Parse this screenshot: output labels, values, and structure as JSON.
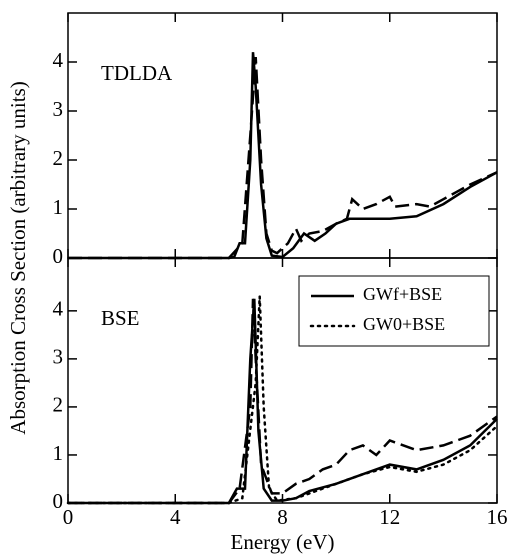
{
  "chart_data": [
    {
      "type": "line",
      "label": "TDLDA",
      "ylabel": "Absorption Cross Section (arbitrary units)",
      "xlim": [
        0,
        16
      ],
      "ylim": [
        0,
        5
      ],
      "xticks": [
        0,
        4,
        8,
        12,
        16
      ],
      "yticks": [
        0,
        1,
        2,
        3,
        4
      ],
      "xticklabels": false,
      "series": [
        {
          "color": "#000000",
          "dash": "solid",
          "x": [
            0,
            6,
            6.2,
            6.4,
            6.6,
            6.8,
            6.9,
            7.0,
            7.2,
            7.4,
            7.6,
            8.0,
            8.4,
            8.8,
            9.2,
            9.6,
            10,
            10.5,
            11,
            12,
            13,
            14,
            15,
            16
          ],
          "values": [
            0,
            0,
            0.02,
            0.3,
            0.3,
            2.0,
            4.2,
            3.5,
            1.5,
            0.4,
            0.05,
            0.02,
            0.2,
            0.5,
            0.35,
            0.5,
            0.7,
            0.8,
            0.8,
            0.8,
            0.85,
            1.1,
            1.45,
            1.75
          ]
        },
        {
          "color": "#000000",
          "dash": "dashed",
          "x": [
            0,
            6,
            6.5,
            6.8,
            7.0,
            7.2,
            7.4,
            7.6,
            7.8,
            8.2,
            8.5,
            8.7,
            9.0,
            9.5,
            10,
            10.4,
            10.6,
            11,
            11.5,
            12,
            12.2,
            13,
            13.5,
            14,
            14.5,
            15,
            16
          ],
          "values": [
            0,
            0,
            0.3,
            2.5,
            4.1,
            2.0,
            0.5,
            0.15,
            0.1,
            0.3,
            0.6,
            0.35,
            0.5,
            0.55,
            0.7,
            0.8,
            1.2,
            1.0,
            1.1,
            1.25,
            1.05,
            1.1,
            1.05,
            1.2,
            1.35,
            1.5,
            1.75
          ]
        }
      ]
    },
    {
      "type": "line",
      "label": "BSE",
      "xlabel": "Energy (eV)",
      "xlim": [
        0,
        16
      ],
      "ylim": [
        0,
        5.1
      ],
      "xticks": [
        0,
        4,
        8,
        12,
        16
      ],
      "yticks": [
        0,
        1,
        2,
        3,
        4
      ],
      "xticklabels": true,
      "legend": "upper right",
      "series": [
        {
          "name": "GWf+BSE",
          "color": "#000000",
          "dash": "solid",
          "x": [
            0,
            6,
            6.3,
            6.6,
            6.8,
            6.95,
            7.1,
            7.3,
            7.6,
            8,
            8.5,
            9,
            10,
            11,
            12,
            13,
            14,
            15,
            16
          ],
          "values": [
            0,
            0,
            0.3,
            0.3,
            3.0,
            4.25,
            1.5,
            0.3,
            0.05,
            0.05,
            0.1,
            0.25,
            0.4,
            0.6,
            0.8,
            0.7,
            0.9,
            1.2,
            1.75
          ]
        },
        {
          "name": "GW0+BSE",
          "color": "#000000",
          "dash": "dotted",
          "x": [
            0,
            6,
            6.5,
            7.0,
            7.15,
            7.3,
            7.5,
            7.8,
            8.5,
            9,
            10,
            11,
            12,
            13,
            14,
            15,
            16
          ],
          "values": [
            0,
            0,
            0.1,
            2.5,
            4.3,
            2.0,
            0.3,
            0.05,
            0.1,
            0.2,
            0.4,
            0.6,
            0.75,
            0.65,
            0.8,
            1.1,
            1.6
          ]
        },
        {
          "color": "#000000",
          "dash": "dashed",
          "x": [
            0,
            6,
            6.4,
            6.8,
            6.9,
            7.0,
            7.2,
            7.6,
            8,
            8.5,
            9,
            9.5,
            10,
            10.5,
            11,
            11.5,
            12,
            13,
            14,
            15,
            16
          ],
          "values": [
            0,
            0,
            0.3,
            2.0,
            4.25,
            3.0,
            0.8,
            0.2,
            0.2,
            0.4,
            0.5,
            0.7,
            0.8,
            1.1,
            1.2,
            1.0,
            1.3,
            1.1,
            1.2,
            1.4,
            1.8
          ]
        }
      ]
    }
  ]
}
